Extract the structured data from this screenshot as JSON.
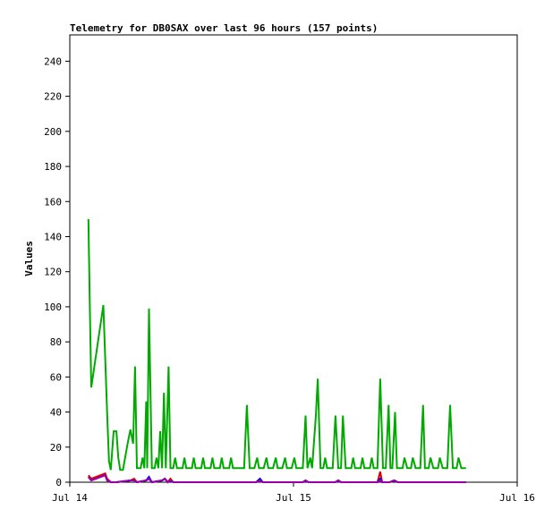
{
  "chart_data": {
    "type": "line",
    "title": "Telemetry for DB0SAX over last 96 hours (157 points)",
    "xlabel": "",
    "ylabel": "Values",
    "x_tick_labels": [
      "Jul 14",
      "Jul 15",
      "Jul 16"
    ],
    "x_tick_hours": [
      0,
      24,
      48
    ],
    "xlim": [
      0,
      48
    ],
    "ylim": [
      0,
      255
    ],
    "y_ticks": [
      0,
      20,
      40,
      60,
      80,
      100,
      120,
      140,
      160,
      180,
      200,
      220,
      240
    ],
    "grid": false,
    "legend": "none",
    "series": [
      {
        "color": "#00aa00",
        "points": [
          [
            2.0,
            150
          ],
          [
            2.15,
            100
          ],
          [
            2.3,
            54
          ],
          [
            3.6,
            101
          ],
          [
            4.0,
            40
          ],
          [
            4.2,
            12
          ],
          [
            4.4,
            7
          ],
          [
            4.7,
            29
          ],
          [
            5.0,
            29
          ],
          [
            5.2,
            14
          ],
          [
            5.4,
            7
          ],
          [
            5.7,
            7
          ],
          [
            6.2,
            22
          ],
          [
            6.5,
            30
          ],
          [
            6.8,
            22
          ],
          [
            7.0,
            66
          ],
          [
            7.2,
            8
          ],
          [
            7.6,
            8
          ],
          [
            7.8,
            14
          ],
          [
            8.0,
            8
          ],
          [
            8.2,
            46
          ],
          [
            8.3,
            8
          ],
          [
            8.5,
            99
          ],
          [
            8.8,
            8
          ],
          [
            9.1,
            8
          ],
          [
            9.3,
            14
          ],
          [
            9.5,
            8
          ],
          [
            9.7,
            29
          ],
          [
            9.9,
            8
          ],
          [
            10.1,
            51
          ],
          [
            10.3,
            8
          ],
          [
            10.6,
            66
          ],
          [
            10.8,
            8
          ],
          [
            11.1,
            8
          ],
          [
            11.3,
            14
          ],
          [
            11.5,
            8
          ],
          [
            12.1,
            8
          ],
          [
            12.3,
            14
          ],
          [
            12.5,
            8
          ],
          [
            13.1,
            8
          ],
          [
            13.3,
            14
          ],
          [
            13.5,
            8
          ],
          [
            14.1,
            8
          ],
          [
            14.3,
            14
          ],
          [
            14.5,
            8
          ],
          [
            15.1,
            8
          ],
          [
            15.3,
            14
          ],
          [
            15.5,
            8
          ],
          [
            16.1,
            8
          ],
          [
            16.3,
            14
          ],
          [
            16.5,
            8
          ],
          [
            17.1,
            8
          ],
          [
            17.3,
            14
          ],
          [
            17.5,
            8
          ],
          [
            18.7,
            8
          ],
          [
            19.0,
            44
          ],
          [
            19.3,
            8
          ],
          [
            19.8,
            8
          ],
          [
            20.1,
            14
          ],
          [
            20.3,
            8
          ],
          [
            20.8,
            8
          ],
          [
            21.1,
            14
          ],
          [
            21.3,
            8
          ],
          [
            21.8,
            8
          ],
          [
            22.1,
            14
          ],
          [
            22.3,
            8
          ],
          [
            22.8,
            8
          ],
          [
            23.1,
            14
          ],
          [
            23.3,
            8
          ],
          [
            23.8,
            8
          ],
          [
            24.1,
            14
          ],
          [
            24.3,
            8
          ],
          [
            25.0,
            8
          ],
          [
            25.3,
            38
          ],
          [
            25.5,
            8
          ],
          [
            25.8,
            14
          ],
          [
            26.0,
            8
          ],
          [
            26.4,
            38
          ],
          [
            26.6,
            59
          ],
          [
            26.9,
            8
          ],
          [
            27.2,
            8
          ],
          [
            27.4,
            14
          ],
          [
            27.6,
            8
          ],
          [
            28.2,
            8
          ],
          [
            28.5,
            38
          ],
          [
            28.8,
            8
          ],
          [
            29.1,
            8
          ],
          [
            29.3,
            38
          ],
          [
            29.6,
            8
          ],
          [
            30.2,
            8
          ],
          [
            30.4,
            14
          ],
          [
            30.6,
            8
          ],
          [
            31.2,
            8
          ],
          [
            31.4,
            14
          ],
          [
            31.6,
            8
          ],
          [
            32.2,
            8
          ],
          [
            32.4,
            14
          ],
          [
            32.6,
            8
          ],
          [
            33.0,
            8
          ],
          [
            33.3,
            59
          ],
          [
            33.6,
            8
          ],
          [
            33.9,
            8
          ],
          [
            34.2,
            44
          ],
          [
            34.4,
            8
          ],
          [
            34.6,
            8
          ],
          [
            34.9,
            40
          ],
          [
            35.1,
            8
          ],
          [
            35.7,
            8
          ],
          [
            35.9,
            14
          ],
          [
            36.2,
            8
          ],
          [
            36.6,
            8
          ],
          [
            36.8,
            14
          ],
          [
            37.1,
            8
          ],
          [
            37.6,
            8
          ],
          [
            37.9,
            44
          ],
          [
            38.1,
            8
          ],
          [
            38.5,
            8
          ],
          [
            38.7,
            14
          ],
          [
            39.0,
            8
          ],
          [
            39.5,
            8
          ],
          [
            39.7,
            14
          ],
          [
            40.0,
            8
          ],
          [
            40.5,
            8
          ],
          [
            40.8,
            44
          ],
          [
            41.1,
            8
          ],
          [
            41.5,
            8
          ],
          [
            41.7,
            14
          ],
          [
            42.0,
            8
          ],
          [
            42.5,
            8
          ]
        ]
      },
      {
        "color": "#dd0000",
        "points": [
          [
            2.0,
            4
          ],
          [
            2.3,
            2
          ],
          [
            3.8,
            5
          ],
          [
            4.0,
            2
          ],
          [
            4.4,
            0
          ],
          [
            5.0,
            0
          ],
          [
            6.5,
            1
          ],
          [
            6.9,
            2
          ],
          [
            7.2,
            0
          ],
          [
            8.2,
            1
          ],
          [
            8.5,
            2
          ],
          [
            8.8,
            0
          ],
          [
            9.9,
            1
          ],
          [
            10.2,
            2
          ],
          [
            10.5,
            0
          ],
          [
            10.8,
            2
          ],
          [
            11.1,
            0
          ],
          [
            20.0,
            0
          ],
          [
            20.4,
            2
          ],
          [
            20.7,
            0
          ],
          [
            25.0,
            0
          ],
          [
            25.3,
            1
          ],
          [
            25.6,
            0
          ],
          [
            28.5,
            0
          ],
          [
            28.8,
            1
          ],
          [
            29.1,
            0
          ],
          [
            33.0,
            0
          ],
          [
            33.3,
            6
          ],
          [
            33.5,
            0
          ],
          [
            34.3,
            0
          ],
          [
            34.8,
            1
          ],
          [
            35.2,
            0
          ],
          [
            42.5,
            0
          ]
        ]
      },
      {
        "color": "#0000ff",
        "points": [
          [
            2.0,
            3
          ],
          [
            2.3,
            1
          ],
          [
            3.8,
            4
          ],
          [
            4.0,
            1
          ],
          [
            4.4,
            0
          ],
          [
            5.0,
            0
          ],
          [
            6.5,
            1
          ],
          [
            6.9,
            1
          ],
          [
            7.2,
            0
          ],
          [
            8.2,
            1
          ],
          [
            8.5,
            3
          ],
          [
            8.8,
            0
          ],
          [
            9.9,
            1
          ],
          [
            10.2,
            2
          ],
          [
            10.5,
            0
          ],
          [
            10.8,
            1
          ],
          [
            11.1,
            0
          ],
          [
            20.0,
            0
          ],
          [
            20.4,
            2
          ],
          [
            20.7,
            0
          ],
          [
            25.0,
            0
          ],
          [
            25.3,
            1
          ],
          [
            25.6,
            0
          ],
          [
            28.5,
            0
          ],
          [
            28.8,
            1
          ],
          [
            29.1,
            0
          ],
          [
            33.0,
            0
          ],
          [
            33.3,
            2
          ],
          [
            33.5,
            0
          ],
          [
            34.3,
            0
          ],
          [
            34.8,
            1
          ],
          [
            35.2,
            0
          ],
          [
            42.5,
            0
          ]
        ]
      },
      {
        "color": "#9900aa",
        "points": [
          [
            2.0,
            3
          ],
          [
            2.3,
            1
          ],
          [
            3.8,
            4
          ],
          [
            4.0,
            1
          ],
          [
            4.4,
            0
          ],
          [
            5.0,
            0
          ],
          [
            6.5,
            1
          ],
          [
            6.9,
            1
          ],
          [
            7.2,
            0
          ],
          [
            8.2,
            1
          ],
          [
            8.5,
            2
          ],
          [
            8.8,
            0
          ],
          [
            9.9,
            1
          ],
          [
            10.2,
            2
          ],
          [
            10.5,
            0
          ],
          [
            10.8,
            1
          ],
          [
            11.1,
            0
          ],
          [
            20.0,
            0
          ],
          [
            20.4,
            1
          ],
          [
            20.7,
            0
          ],
          [
            25.0,
            0
          ],
          [
            25.3,
            1
          ],
          [
            25.6,
            0
          ],
          [
            28.5,
            0
          ],
          [
            28.8,
            1
          ],
          [
            29.1,
            0
          ],
          [
            33.0,
            0
          ],
          [
            33.3,
            1
          ],
          [
            33.5,
            0
          ],
          [
            34.3,
            0
          ],
          [
            34.8,
            1
          ],
          [
            35.2,
            0
          ],
          [
            42.5,
            0
          ]
        ]
      }
    ]
  }
}
